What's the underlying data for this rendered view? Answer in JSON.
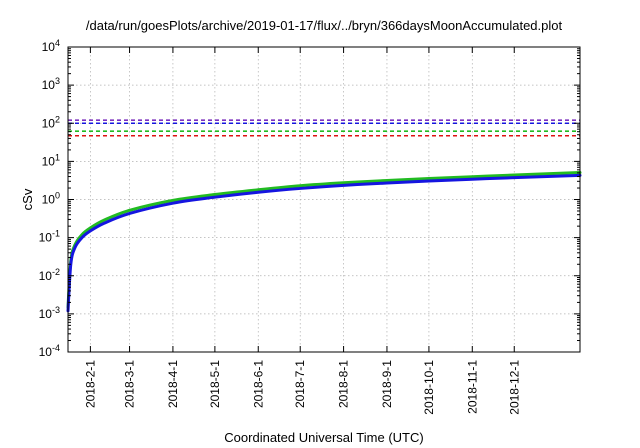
{
  "chart_data": {
    "type": "line",
    "title": "/data/run/goesPlots/archive/2019-01-17/flux/../bryn/366daysMoonAccumulated.plot",
    "xlabel": "Coordinated Universal Time (UTC)",
    "ylabel": "cSv",
    "yscale": "log",
    "ylim": [
      0.0001,
      10000
    ],
    "xlim": [
      "2018-01-16",
      "2019-01-17"
    ],
    "grid": true,
    "y_ticks": [
      {
        "value": 0.0001,
        "base": "10",
        "exp": "-4"
      },
      {
        "value": 0.001,
        "base": "10",
        "exp": "-3"
      },
      {
        "value": 0.01,
        "base": "10",
        "exp": "-2"
      },
      {
        "value": 0.1,
        "base": "10",
        "exp": "-1"
      },
      {
        "value": 1,
        "base": "10",
        "exp": "0"
      },
      {
        "value": 10,
        "base": "10",
        "exp": "1"
      },
      {
        "value": 100,
        "base": "10",
        "exp": "2"
      },
      {
        "value": 1000,
        "base": "10",
        "exp": "3"
      },
      {
        "value": 10000,
        "base": "10",
        "exp": "4"
      }
    ],
    "x_ticks": [
      {
        "date": "2018-02-01",
        "label": "2018-2-1"
      },
      {
        "date": "2018-03-01",
        "label": "2018-3-1"
      },
      {
        "date": "2018-04-01",
        "label": "2018-4-1"
      },
      {
        "date": "2018-05-01",
        "label": "2018-5-1"
      },
      {
        "date": "2018-06-01",
        "label": "2018-6-1"
      },
      {
        "date": "2018-07-01",
        "label": "2018-7-1"
      },
      {
        "date": "2018-08-01",
        "label": "2018-8-1"
      },
      {
        "date": "2018-09-01",
        "label": "2018-9-1"
      },
      {
        "date": "2018-10-01",
        "label": "2018-10-1"
      },
      {
        "date": "2018-11-01",
        "label": "2018-11-1"
      },
      {
        "date": "2018-12-01",
        "label": "2018-12-1"
      }
    ],
    "reference_lines": [
      {
        "y": 120,
        "color": "#7b2fbe",
        "style": "dashed"
      },
      {
        "y": 100,
        "color": "#1515e0",
        "style": "dashed"
      },
      {
        "y": 62,
        "color": "#22bb22",
        "style": "dashed"
      },
      {
        "y": 47,
        "color": "#dd1111",
        "style": "dashed"
      }
    ],
    "series": [
      {
        "color": "#22bb22",
        "x": [
          "2018-01-16",
          "2018-01-18",
          "2018-01-21",
          "2018-01-26",
          "2018-02-01",
          "2018-02-11",
          "2018-03-01",
          "2018-04-01",
          "2018-05-01",
          "2018-06-01",
          "2018-07-01",
          "2018-08-01",
          "2018-09-01",
          "2018-10-01",
          "2018-11-01",
          "2018-12-01",
          "2019-01-17"
        ],
        "y": [
          0.0015,
          0.025,
          0.065,
          0.12,
          0.18,
          0.29,
          0.52,
          0.95,
          1.35,
          1.8,
          2.3,
          2.75,
          3.15,
          3.55,
          3.95,
          4.4,
          5.1
        ]
      },
      {
        "color": "#1515e0",
        "x": [
          "2018-01-16",
          "2018-01-18",
          "2018-01-21",
          "2018-01-26",
          "2018-02-01",
          "2018-02-11",
          "2018-03-01",
          "2018-04-01",
          "2018-05-01",
          "2018-06-01",
          "2018-07-01",
          "2018-08-01",
          "2018-09-01",
          "2018-10-01",
          "2018-11-01",
          "2018-12-01",
          "2019-01-17"
        ],
        "y": [
          0.0012,
          0.02,
          0.055,
          0.1,
          0.15,
          0.24,
          0.43,
          0.8,
          1.15,
          1.55,
          1.95,
          2.35,
          2.7,
          3.05,
          3.4,
          3.75,
          4.3
        ]
      }
    ]
  }
}
